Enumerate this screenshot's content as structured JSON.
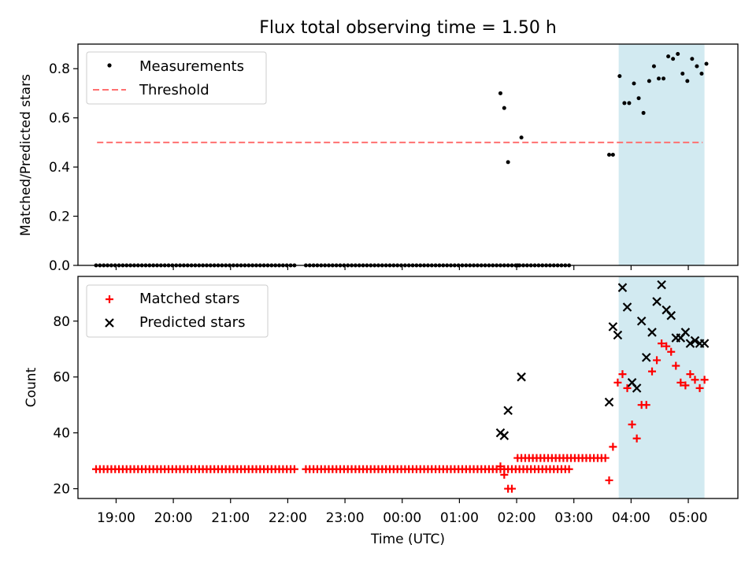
{
  "chart_data": {
    "title": "Flux total observing time = 1.50 h",
    "xlabel": "Time (UTC)",
    "x_ticks": [
      "19:00",
      "20:00",
      "21:00",
      "22:00",
      "23:00",
      "00:00",
      "01:00",
      "02:00",
      "03:00",
      "04:00",
      "05:00"
    ],
    "highlight_span": {
      "start": "03:47",
      "end": "05:17",
      "color": "#add8e6"
    },
    "panels": [
      {
        "type": "scatter",
        "ylabel": "Matched/Predicted stars",
        "ylim": [
          0,
          0.9
        ],
        "yticks": [
          "0.0",
          "0.2",
          "0.4",
          "0.6",
          "0.8"
        ],
        "legend": "top-left",
        "series": [
          {
            "name": "Measurements",
            "marker": "dot",
            "color": "#000000",
            "flat_run": {
              "start": "18:39",
              "step_min": 4,
              "count": 125,
              "value": 0.0
            },
            "skip": [
              "22:11",
              "22:15",
              "02:01",
              "02:05"
            ],
            "points": [
              [
                "01:43",
                0.7
              ],
              [
                "01:47",
                0.64
              ],
              [
                "01:51",
                0.42
              ],
              [
                "02:01",
                0.0
              ],
              [
                "02:05",
                0.52
              ],
              [
                "03:37",
                0.45
              ],
              [
                "03:41",
                0.45
              ],
              [
                "03:48",
                0.77
              ],
              [
                "03:53",
                0.66
              ],
              [
                "03:58",
                0.66
              ],
              [
                "04:03",
                0.74
              ],
              [
                "04:08",
                0.68
              ],
              [
                "04:13",
                0.62
              ],
              [
                "04:19",
                0.75
              ],
              [
                "04:24",
                0.81
              ],
              [
                "04:29",
                0.76
              ],
              [
                "04:34",
                0.76
              ],
              [
                "04:39",
                0.85
              ],
              [
                "04:44",
                0.84
              ],
              [
                "04:49",
                0.86
              ],
              [
                "04:54",
                0.78
              ],
              [
                "04:59",
                0.75
              ],
              [
                "05:04",
                0.84
              ],
              [
                "05:09",
                0.81
              ],
              [
                "05:14",
                0.78
              ],
              [
                "05:19",
                0.82
              ]
            ]
          },
          {
            "name": "Threshold",
            "type": "line",
            "style": "dashed",
            "color": "#ff7070",
            "x_start": "18:40",
            "x_end": "05:15",
            "value": 0.5
          }
        ]
      },
      {
        "type": "scatter",
        "ylabel": "Count",
        "ylim": [
          16.5,
          96
        ],
        "yticks": [
          "20",
          "40",
          "60",
          "80"
        ],
        "legend": "top-left",
        "series": [
          {
            "name": "Matched stars",
            "marker": "plus",
            "color": "#ff0000",
            "flat_run": {
              "start": "18:39",
              "step_min": 4,
              "count": 125,
              "value": 27
            },
            "skip": [
              "22:11",
              "22:15"
            ],
            "points": [
              [
                "01:43",
                28
              ],
              [
                "01:47",
                25
              ],
              [
                "01:51",
                20
              ],
              [
                "01:55",
                20
              ],
              [
                "02:01",
                31
              ],
              [
                "02:05",
                31
              ],
              [
                "02:09",
                31
              ],
              [
                "02:13",
                31
              ],
              [
                "02:17",
                31
              ],
              [
                "02:21",
                31
              ],
              [
                "02:25",
                31
              ],
              [
                "02:29",
                31
              ],
              [
                "02:33",
                31
              ],
              [
                "02:37",
                31
              ],
              [
                "02:41",
                31
              ],
              [
                "02:45",
                31
              ],
              [
                "02:49",
                31
              ],
              [
                "02:53",
                31
              ],
              [
                "02:57",
                31
              ],
              [
                "03:01",
                31
              ],
              [
                "03:05",
                31
              ],
              [
                "03:09",
                31
              ],
              [
                "03:13",
                31
              ],
              [
                "03:17",
                31
              ],
              [
                "03:21",
                31
              ],
              [
                "03:25",
                31
              ],
              [
                "03:29",
                31
              ],
              [
                "03:33",
                31
              ],
              [
                "03:37",
                23
              ],
              [
                "03:41",
                35
              ],
              [
                "03:46",
                58
              ],
              [
                "03:51",
                61
              ],
              [
                "03:56",
                56
              ],
              [
                "04:01",
                43
              ],
              [
                "04:06",
                38
              ],
              [
                "04:11",
                50
              ],
              [
                "04:16",
                50
              ],
              [
                "04:22",
                62
              ],
              [
                "04:27",
                66
              ],
              [
                "04:32",
                72
              ],
              [
                "04:37",
                71
              ],
              [
                "04:42",
                69
              ],
              [
                "04:47",
                64
              ],
              [
                "04:52",
                58
              ],
              [
                "04:57",
                57
              ],
              [
                "05:02",
                61
              ],
              [
                "05:07",
                59
              ],
              [
                "05:12",
                56
              ],
              [
                "05:17",
                59
              ]
            ]
          },
          {
            "name": "Predicted stars",
            "marker": "cross",
            "color": "#000000",
            "points": [
              [
                "01:43",
                40
              ],
              [
                "01:47",
                39
              ],
              [
                "01:51",
                48
              ],
              [
                "02:05",
                60
              ],
              [
                "03:37",
                51
              ],
              [
                "03:41",
                78
              ],
              [
                "03:46",
                75
              ],
              [
                "03:51",
                92
              ],
              [
                "03:56",
                85
              ],
              [
                "04:01",
                58
              ],
              [
                "04:06",
                56
              ],
              [
                "04:11",
                80
              ],
              [
                "04:16",
                67
              ],
              [
                "04:22",
                76
              ],
              [
                "04:27",
                87
              ],
              [
                "04:32",
                93
              ],
              [
                "04:37",
                84
              ],
              [
                "04:42",
                82
              ],
              [
                "04:47",
                74
              ],
              [
                "04:52",
                74
              ],
              [
                "04:57",
                76
              ],
              [
                "05:02",
                72
              ],
              [
                "05:07",
                73
              ],
              [
                "05:12",
                72
              ],
              [
                "05:17",
                72
              ]
            ]
          }
        ]
      }
    ]
  }
}
